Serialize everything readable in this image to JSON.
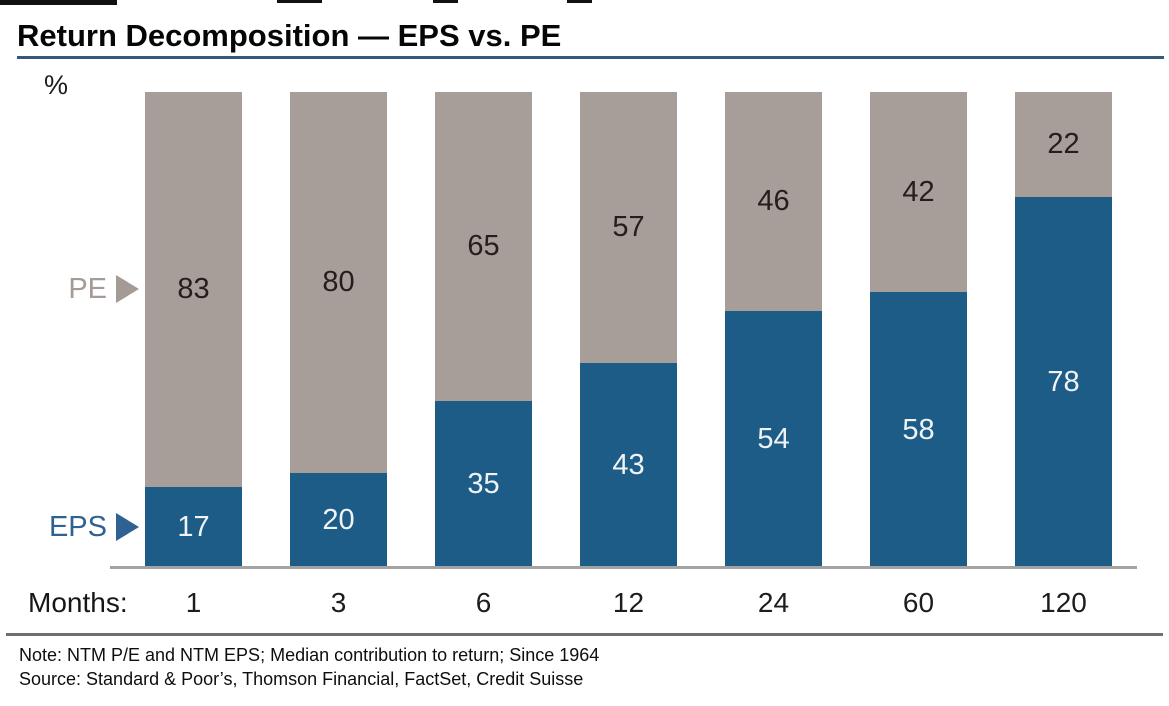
{
  "header": {
    "title": "Return Decomposition — EPS vs. PE"
  },
  "chart_data": {
    "type": "bar",
    "stacked": true,
    "title": "Return Decomposition — EPS vs. PE",
    "unit_label": "%",
    "x_axis_label": "Months:",
    "categories": [
      "1",
      "3",
      "6",
      "12",
      "24",
      "60",
      "120"
    ],
    "series": [
      {
        "name": "EPS",
        "color": "#1d5c87",
        "label_color": "#eff3f5",
        "values": [
          17,
          20,
          35,
          43,
          54,
          58,
          78
        ]
      },
      {
        "name": "PE",
        "color": "#a79d99",
        "label_color": "#231f1d",
        "values": [
          83,
          80,
          65,
          57,
          46,
          42,
          22
        ]
      }
    ],
    "ylim": [
      0,
      100
    ],
    "grid": false,
    "legend_position": "left-pointers"
  },
  "colors": {
    "eps_bar": "#1d5c87",
    "pe_bar": "#a79d99",
    "eps_text": "#2f6292",
    "pe_text": "#a49a96",
    "title_rule": "#35597e",
    "axis_line": "#a3a3a3",
    "footer_rule": "#6f6f6f"
  },
  "footer": {
    "note": "Note: NTM P/E and NTM EPS; Median contribution to return; Since 1964",
    "source": "Source: Standard & Poor’s, Thomson Financial, FactSet, Credit Suisse"
  }
}
